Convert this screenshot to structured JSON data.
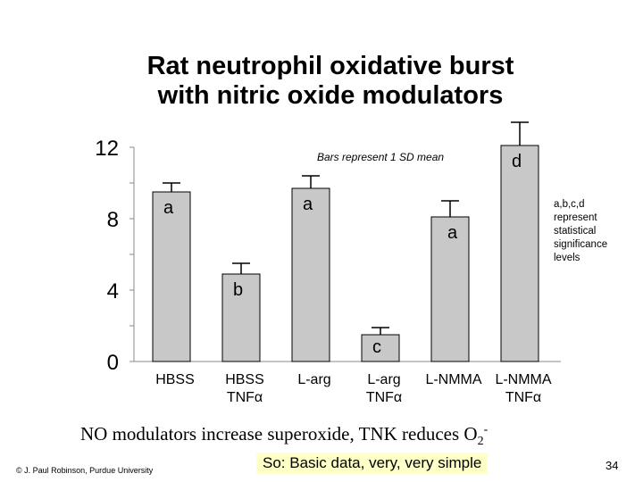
{
  "slide": {
    "title_line1": "Rat neutrophil oxidative burst",
    "title_line2": "with nitric oxide modulators",
    "caption_main": "NO modulators increase superoxide, TNK reduces O",
    "caption_sub": "2",
    "caption_sup": "-",
    "copyright": "© J. Paul Robinson, Purdue University",
    "note": "So: Basic data, very, very simple",
    "page_number": "34"
  },
  "chart_data": {
    "type": "bar",
    "categories": [
      [
        "HBSS"
      ],
      [
        "HBSS",
        "TNFα"
      ],
      [
        "L-arg"
      ],
      [
        "L-arg",
        "TNFα"
      ],
      [
        "L-NMMA"
      ],
      [
        "L-NMMA",
        "TNFα"
      ]
    ],
    "values": [
      9.5,
      4.9,
      9.7,
      1.5,
      8.1,
      12.1
    ],
    "errors": [
      0.5,
      0.6,
      0.7,
      0.4,
      0.9,
      1.3
    ],
    "bar_labels": [
      "a",
      "b",
      "a",
      "c",
      "a",
      "d"
    ],
    "yticks": [
      0,
      4,
      8,
      12
    ],
    "ylim": [
      0,
      12
    ],
    "annotation": "Bars represent 1 SD mean",
    "side_note": [
      "a,b,c,d",
      "represent",
      "statistical",
      "significance",
      "levels"
    ],
    "bar_color": "#c8c8c8"
  }
}
